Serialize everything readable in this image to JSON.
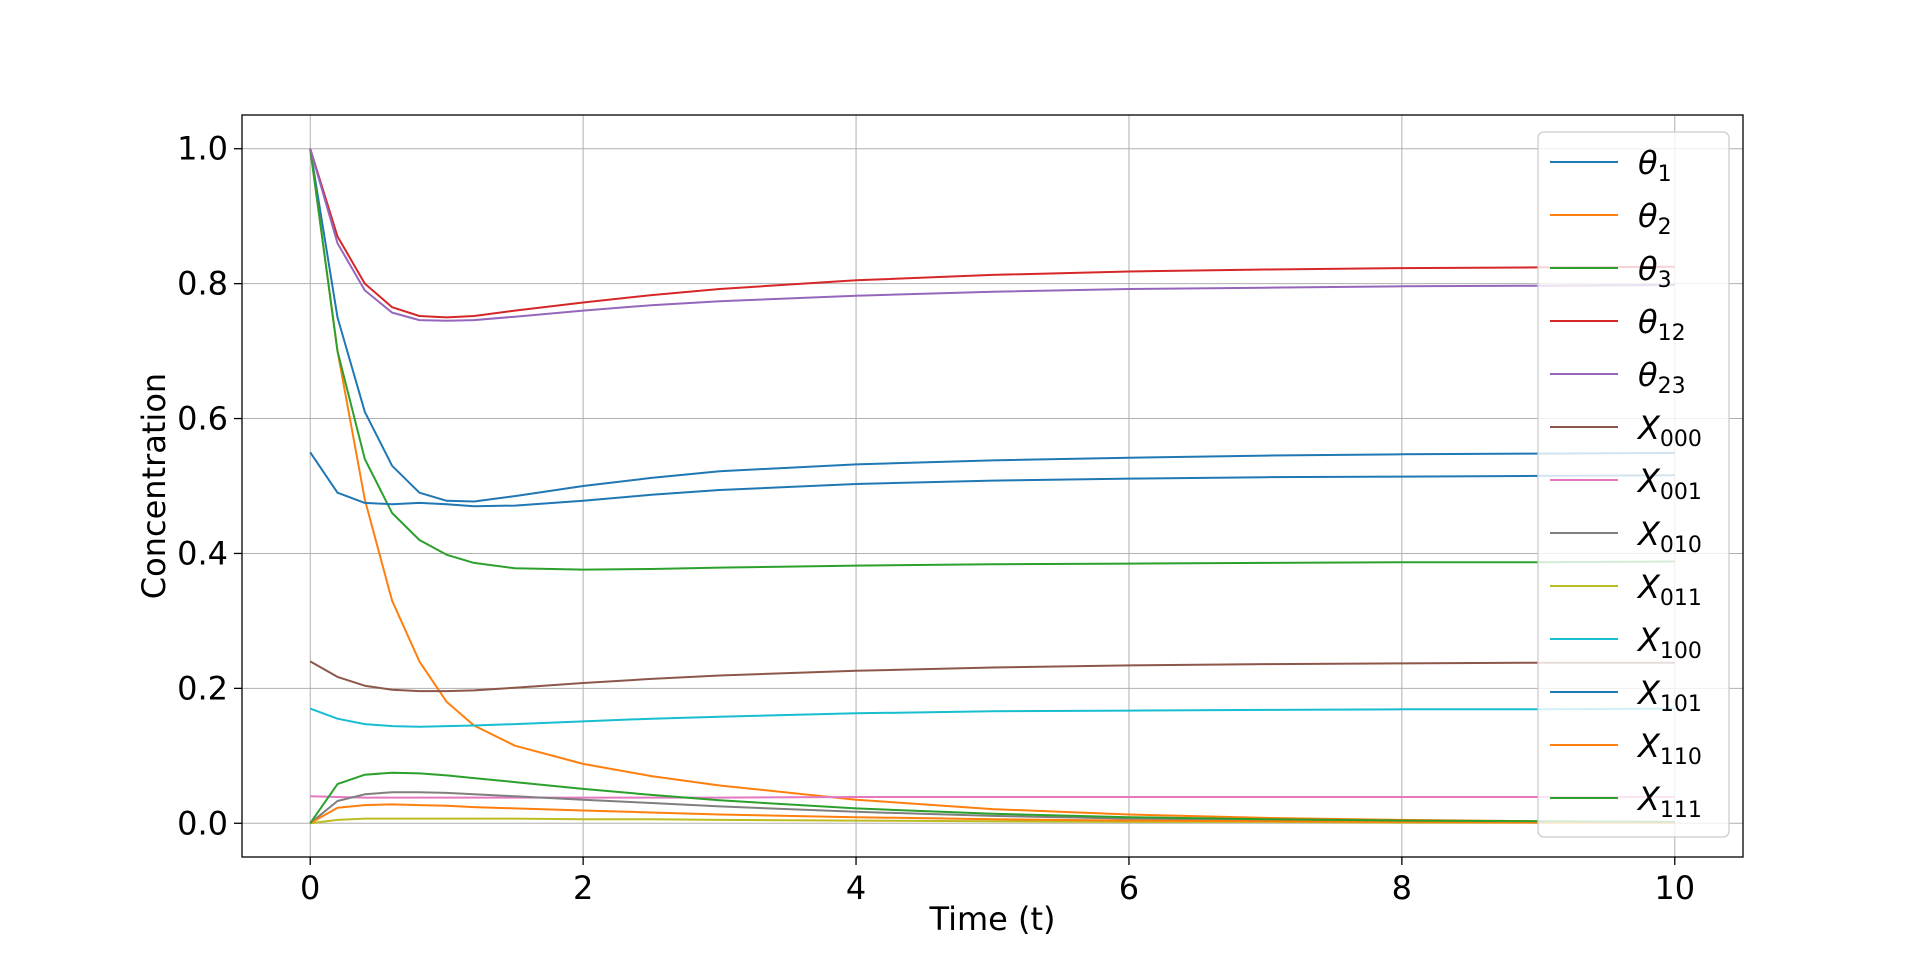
{
  "chart_data": {
    "type": "line",
    "title": "",
    "xlabel": "Time (t)",
    "ylabel": "Concentration",
    "xlim": [
      -0.5,
      10.5
    ],
    "ylim": [
      -0.05,
      1.05
    ],
    "xticks": [
      0,
      2,
      4,
      6,
      8,
      10
    ],
    "xtick_labels": [
      "0",
      "2",
      "4",
      "6",
      "8",
      "10"
    ],
    "yticks": [
      0.0,
      0.2,
      0.4,
      0.6,
      0.8,
      1.0
    ],
    "ytick_labels": [
      "0.0",
      "0.2",
      "0.4",
      "0.6",
      "0.8",
      "1.0"
    ],
    "grid": true,
    "legend_position": "upper right",
    "x": [
      0,
      0.2,
      0.4,
      0.6,
      0.8,
      1,
      1.2,
      1.5,
      2,
      2.5,
      3,
      4,
      5,
      6,
      7,
      8,
      9,
      10
    ],
    "series": [
      {
        "name": "θ1",
        "base": "θ",
        "sub": "1",
        "color": "#1f77b4",
        "values": [
          1.0,
          0.75,
          0.61,
          0.53,
          0.49,
          0.478,
          0.477,
          0.485,
          0.5,
          0.512,
          0.522,
          0.532,
          0.538,
          0.542,
          0.545,
          0.547,
          0.548,
          0.549
        ]
      },
      {
        "name": "θ2",
        "base": "θ",
        "sub": "2",
        "color": "#ff7f0e",
        "values": [
          1.0,
          0.7,
          0.48,
          0.33,
          0.24,
          0.18,
          0.145,
          0.115,
          0.088,
          0.07,
          0.056,
          0.035,
          0.021,
          0.013,
          0.008,
          0.005,
          0.003,
          0.002
        ]
      },
      {
        "name": "θ3",
        "base": "θ",
        "sub": "3",
        "color": "#2ca02c",
        "values": [
          1.0,
          0.7,
          0.54,
          0.46,
          0.42,
          0.398,
          0.386,
          0.378,
          0.376,
          0.377,
          0.379,
          0.382,
          0.384,
          0.385,
          0.386,
          0.387,
          0.387,
          0.388
        ]
      },
      {
        "name": "θ12",
        "base": "θ",
        "sub": "12",
        "color": "#d62728",
        "values": [
          1.0,
          0.87,
          0.8,
          0.765,
          0.752,
          0.75,
          0.752,
          0.76,
          0.772,
          0.783,
          0.792,
          0.805,
          0.813,
          0.818,
          0.821,
          0.823,
          0.824,
          0.825
        ]
      },
      {
        "name": "θ23",
        "base": "θ",
        "sub": "23",
        "color": "#9467bd",
        "values": [
          1.0,
          0.86,
          0.79,
          0.757,
          0.746,
          0.745,
          0.746,
          0.751,
          0.76,
          0.768,
          0.774,
          0.782,
          0.788,
          0.792,
          0.794,
          0.796,
          0.797,
          0.798
        ]
      },
      {
        "name": "X000",
        "base": "X",
        "sub": "000",
        "color": "#8c564b",
        "values": [
          0.24,
          0.217,
          0.204,
          0.198,
          0.196,
          0.196,
          0.197,
          0.201,
          0.208,
          0.214,
          0.219,
          0.226,
          0.231,
          0.234,
          0.236,
          0.237,
          0.238,
          0.238
        ]
      },
      {
        "name": "X001",
        "base": "X",
        "sub": "001",
        "color": "#e377c2",
        "values": [
          0.04,
          0.039,
          0.038,
          0.038,
          0.038,
          0.038,
          0.038,
          0.038,
          0.038,
          0.038,
          0.038,
          0.039,
          0.039,
          0.039,
          0.039,
          0.039,
          0.039,
          0.039
        ]
      },
      {
        "name": "X010",
        "base": "X",
        "sub": "010",
        "color": "#7f7f7f",
        "values": [
          0.0,
          0.033,
          0.043,
          0.046,
          0.046,
          0.045,
          0.043,
          0.04,
          0.035,
          0.03,
          0.025,
          0.017,
          0.011,
          0.007,
          0.005,
          0.003,
          0.002,
          0.001
        ]
      },
      {
        "name": "X011",
        "base": "X",
        "sub": "011",
        "color": "#bcbd22",
        "values": [
          0.0,
          0.005,
          0.007,
          0.007,
          0.007,
          0.007,
          0.007,
          0.007,
          0.006,
          0.006,
          0.005,
          0.004,
          0.003,
          0.002,
          0.002,
          0.001,
          0.001,
          0.001
        ]
      },
      {
        "name": "X100",
        "base": "X",
        "sub": "100",
        "color": "#17becf",
        "values": [
          0.17,
          0.155,
          0.147,
          0.144,
          0.143,
          0.144,
          0.145,
          0.147,
          0.151,
          0.155,
          0.158,
          0.163,
          0.166,
          0.167,
          0.168,
          0.169,
          0.169,
          0.17
        ]
      },
      {
        "name": "X101",
        "base": "X",
        "sub": "101",
        "color": "#1f77b4",
        "values": [
          0.55,
          0.49,
          0.475,
          0.473,
          0.475,
          0.473,
          0.47,
          0.471,
          0.478,
          0.487,
          0.494,
          0.503,
          0.508,
          0.511,
          0.513,
          0.514,
          0.515,
          0.516
        ]
      },
      {
        "name": "X110",
        "base": "X",
        "sub": "110",
        "color": "#ff7f0e",
        "values": [
          0.0,
          0.023,
          0.027,
          0.028,
          0.027,
          0.026,
          0.024,
          0.022,
          0.019,
          0.016,
          0.013,
          0.009,
          0.006,
          0.004,
          0.003,
          0.002,
          0.001,
          0.001
        ]
      },
      {
        "name": "X111",
        "base": "X",
        "sub": "111",
        "color": "#2ca02c",
        "values": [
          0.0,
          0.058,
          0.072,
          0.075,
          0.074,
          0.071,
          0.067,
          0.061,
          0.051,
          0.042,
          0.034,
          0.022,
          0.014,
          0.009,
          0.006,
          0.004,
          0.003,
          0.002
        ]
      }
    ]
  }
}
